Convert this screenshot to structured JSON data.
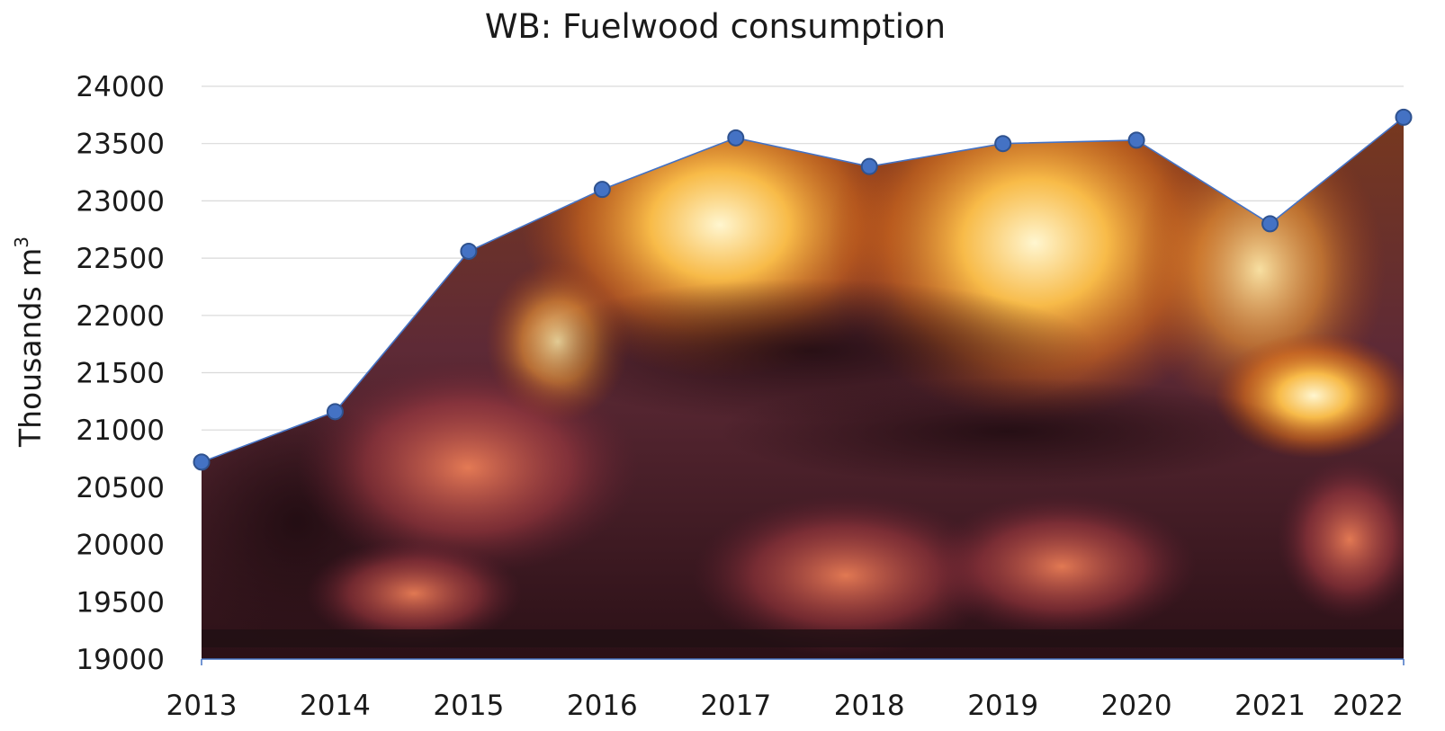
{
  "chart_data": {
    "type": "area",
    "title": "WB: Fuelwood consumption",
    "xlabel": "",
    "ylabel": "Thousands m",
    "ylabel_superscript": "3",
    "categories": [
      "2013",
      "2014",
      "2015",
      "2016",
      "2017",
      "2018",
      "2019",
      "2020",
      "2021",
      "2022"
    ],
    "series": [
      {
        "values": [
          20720,
          21160,
          22560,
          23100,
          23550,
          23300,
          23500,
          23530,
          22800,
          23730
        ]
      }
    ],
    "ylim": [
      19000,
      24000
    ],
    "yticks": [
      19000,
      19500,
      20000,
      20500,
      21000,
      21500,
      22000,
      22500,
      23000,
      23500,
      24000
    ],
    "grid": true,
    "area_fill": "photo of burning firewood",
    "colors": {
      "line": "#4472c4",
      "marker": "#4472c4",
      "grid": "#d9d9d9"
    }
  }
}
